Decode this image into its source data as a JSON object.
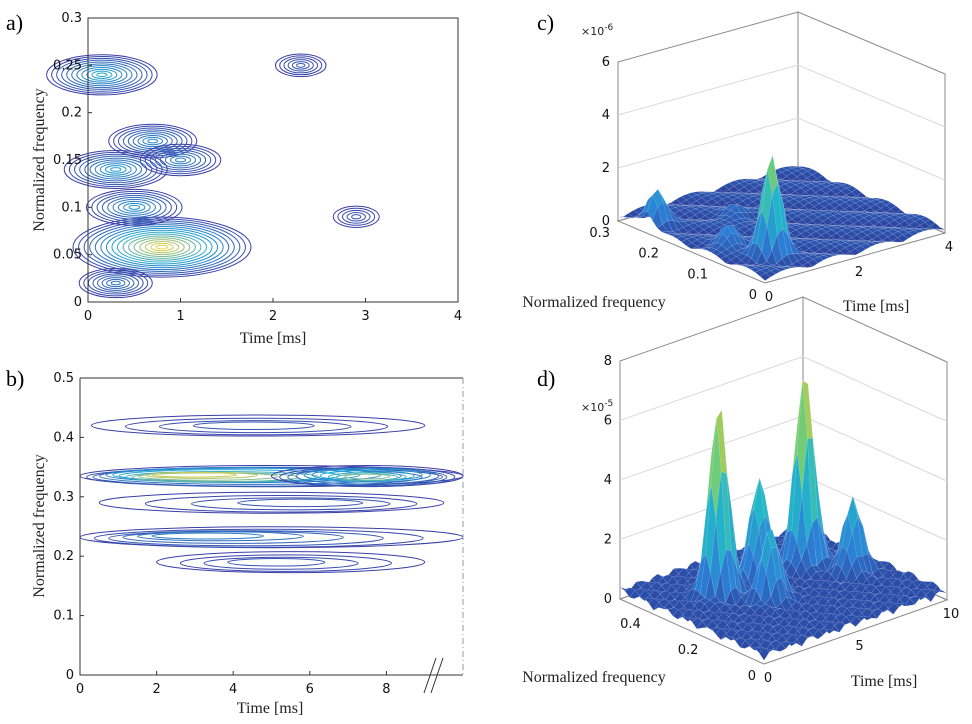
{
  "panels": {
    "a": {
      "label": "a)"
    },
    "b": {
      "label": "b)"
    },
    "c": {
      "label": "c)",
      "multiplier_base": "×10",
      "multiplier_exp": "-6"
    },
    "d": {
      "label": "d)",
      "multiplier_base": "×10",
      "multiplier_exp": "-5"
    }
  },
  "colors": {
    "contour_low": "#3b3ea8",
    "contour_mid": "#1fa6d8",
    "contour_high": "#f2d33a",
    "surface_low": "#2a2f8c",
    "surface_high": "#f6c53e"
  },
  "chart_data": [
    {
      "id": "a",
      "type": "contour",
      "xlabel": "Time [ms]",
      "ylabel": "Normalized frequency",
      "xlim": [
        0,
        4
      ],
      "ylim": [
        0,
        0.3
      ],
      "xticks": [
        "0",
        "1",
        "2",
        "3",
        "4"
      ],
      "yticks": [
        "0",
        "0.05",
        "0.1",
        "0.15",
        "0.2",
        "0.25",
        "0.3"
      ],
      "peaks": [
        {
          "t": 0.8,
          "f": 0.058,
          "level": 1.0
        },
        {
          "t": 0.15,
          "f": 0.24,
          "level": 0.55
        },
        {
          "t": 0.3,
          "f": 0.14,
          "level": 0.5
        },
        {
          "t": 0.5,
          "f": 0.1,
          "level": 0.45
        },
        {
          "t": 0.7,
          "f": 0.17,
          "level": 0.4
        },
        {
          "t": 1.0,
          "f": 0.15,
          "level": 0.35
        },
        {
          "t": 0.3,
          "f": 0.02,
          "level": 0.3
        },
        {
          "t": 2.3,
          "f": 0.25,
          "level": 0.15
        },
        {
          "t": 2.9,
          "f": 0.09,
          "level": 0.12
        }
      ]
    },
    {
      "id": "b",
      "type": "contour",
      "xlabel": "Time [ms]",
      "ylabel": "Normalized frequency",
      "xlim": [
        0,
        10
      ],
      "ylim": [
        0,
        0.5
      ],
      "xticks": [
        "0",
        "2",
        "4",
        "6",
        "8"
      ],
      "yticks": [
        "0",
        "0.1",
        "0.2",
        "0.3",
        "0.4",
        "0.5"
      ],
      "axis_break": "//",
      "ridges": [
        {
          "f": 0.335,
          "t_start": 0,
          "t_end": 10,
          "peak_t": 2.8,
          "level": 1.0
        },
        {
          "f": 0.335,
          "t_start": 5,
          "t_end": 10,
          "peak_t": 7.5,
          "level": 0.8
        },
        {
          "f": 0.232,
          "t_start": 0,
          "t_end": 10,
          "peak_t": 3.0,
          "level": 0.35
        },
        {
          "f": 0.42,
          "t_start": 0.3,
          "t_end": 9,
          "peak_t": 4.5,
          "level": 0.15
        },
        {
          "f": 0.29,
          "t_start": 0.5,
          "t_end": 9.5,
          "peak_t": 6,
          "level": 0.15
        },
        {
          "f": 0.19,
          "t_start": 2,
          "t_end": 9,
          "peak_t": 5,
          "level": 0.12
        }
      ]
    },
    {
      "id": "c",
      "type": "surface",
      "xlabel": "Time [ms]",
      "ylabel": "Normalized frequency",
      "xticks": [
        "0",
        "2",
        "4"
      ],
      "yticks": [
        "0",
        "0.1",
        "0.2",
        "0.3"
      ],
      "zticks": [
        "0",
        "2",
        "4",
        "6"
      ],
      "xlim": [
        0,
        4
      ],
      "ylim": [
        0,
        0.3
      ],
      "zlim": [
        0,
        6
      ],
      "peaks": [
        {
          "t": 0.8,
          "f": 0.06,
          "z": 3.7
        },
        {
          "t": 0.2,
          "f": 0.24,
          "z": 1.3
        },
        {
          "t": 0.5,
          "f": 0.12,
          "z": 0.9
        },
        {
          "t": 1.5,
          "f": 0.2,
          "z": 0.5
        }
      ]
    },
    {
      "id": "d",
      "type": "surface",
      "xlabel": "Time [ms]",
      "ylabel": "Normalized frequency",
      "xticks": [
        "0",
        "5",
        "10"
      ],
      "yticks": [
        "0",
        "0.2",
        "0.4"
      ],
      "zticks": [
        "0",
        "2",
        "4",
        "6",
        "8"
      ],
      "xlim": [
        0,
        10
      ],
      "ylim": [
        0,
        0.5
      ],
      "zlim": [
        0,
        8
      ],
      "peaks": [
        {
          "t": 2.8,
          "f": 0.335,
          "z": 6.5
        },
        {
          "t": 7.5,
          "f": 0.335,
          "z": 6.5
        },
        {
          "t": 5.0,
          "f": 0.335,
          "z": 3.4
        },
        {
          "t": 4.0,
          "f": 0.232,
          "z": 2.5
        },
        {
          "t": 8.5,
          "f": 0.232,
          "z": 2.4
        }
      ]
    }
  ]
}
